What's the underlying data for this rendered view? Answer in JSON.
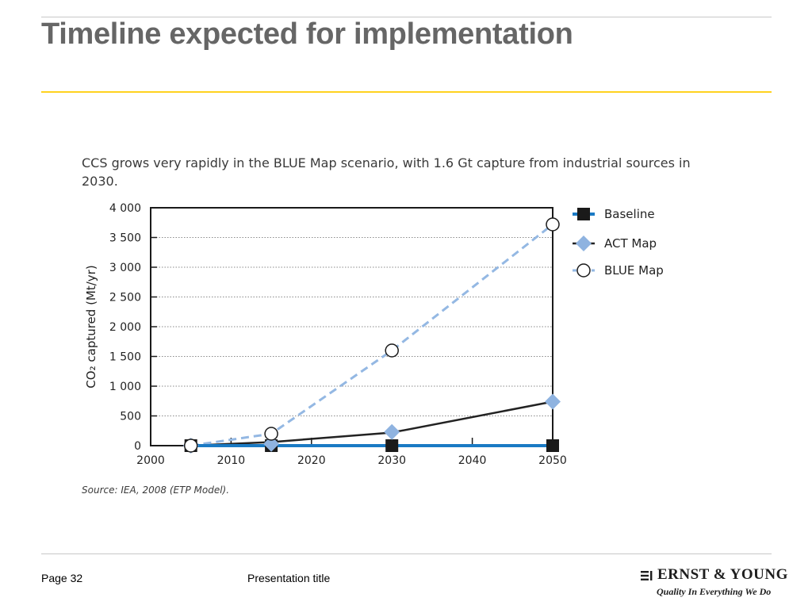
{
  "slide": {
    "title": "Timeline expected for implementation",
    "page_label": "Page 32",
    "presentation_title": "Presentation title"
  },
  "logo": {
    "name": "ERNST & YOUNG",
    "tagline": "Quality In Everything We Do"
  },
  "chart_data": {
    "type": "line",
    "title": "CCS grows very rapidly in the BLUE Map scenario, with 1.6 Gt capture from industrial sources in 2030.",
    "ylabel": "CO₂ captured (Mt/yr)",
    "xlabel": "",
    "source": "Source: IEA, 2008 (ETP Model).",
    "xlim": [
      2000,
      2050
    ],
    "ylim": [
      0,
      4000
    ],
    "x_ticks": [
      {
        "value": 2000,
        "label": "2000"
      },
      {
        "value": 2010,
        "label": "2010"
      },
      {
        "value": 2020,
        "label": "2020"
      },
      {
        "value": 2030,
        "label": "2030"
      },
      {
        "value": 2040,
        "label": "2040"
      },
      {
        "value": 2050,
        "label": "2050"
      }
    ],
    "y_ticks": [
      {
        "value": 0,
        "label": "0"
      },
      {
        "value": 500,
        "label": "500"
      },
      {
        "value": 1000,
        "label": "1 000"
      },
      {
        "value": 1500,
        "label": "1 500"
      },
      {
        "value": 2000,
        "label": "2 000"
      },
      {
        "value": 2500,
        "label": "2 500"
      },
      {
        "value": 3000,
        "label": "3 000"
      },
      {
        "value": 3500,
        "label": "3 500"
      },
      {
        "value": 4000,
        "label": "4 000"
      }
    ],
    "grid": "horizontal dotted",
    "legend_position": "right",
    "trend_line": {
      "color": "#222222",
      "x": [
        2005,
        2015,
        2030,
        2050
      ],
      "y": [
        0,
        60,
        220,
        740
      ]
    },
    "series": [
      {
        "name": "Baseline",
        "marker": "square",
        "color": "#1a7ac4",
        "marker_color": "#1a1a1a",
        "dash": "solid",
        "x": [
          2005,
          2015,
          2030,
          2050
        ],
        "y": [
          0,
          0,
          0,
          0
        ]
      },
      {
        "name": "ACT Map",
        "marker": "diamond",
        "color": "#222222",
        "marker_color": "#8fb3e0",
        "dash": "solid",
        "x": [
          2005,
          2015,
          2030,
          2050
        ],
        "y": [
          0,
          30,
          230,
          740
        ]
      },
      {
        "name": "BLUE Map",
        "marker": "circle",
        "color": "#94b8e3",
        "marker_color": "#ffffff",
        "dash": "dashed",
        "x": [
          2005,
          2015,
          2030,
          2050
        ],
        "y": [
          0,
          200,
          1600,
          3720
        ]
      }
    ]
  }
}
